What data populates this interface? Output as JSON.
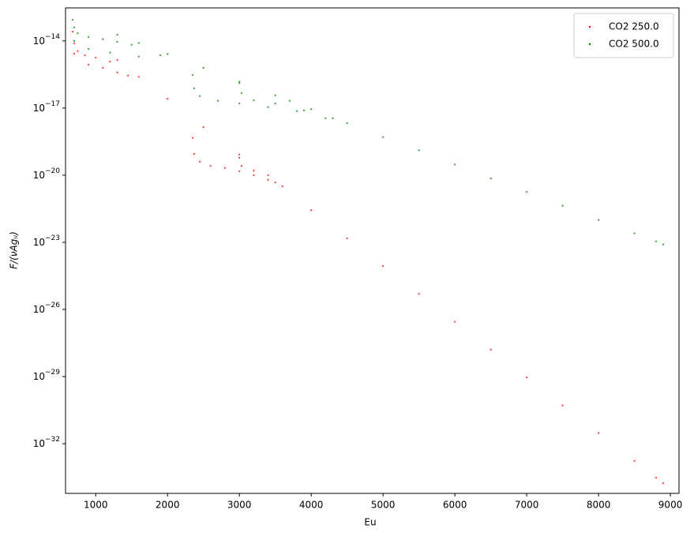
{
  "chart_data": {
    "type": "scatter",
    "xlabel": "Eu",
    "ylabel": "F/(νAgᵤ)",
    "xlim": [
      580,
      9120
    ],
    "ylim": [
      3e-13,
      6e-35
    ],
    "log_y": true,
    "xticks": [
      1000,
      2000,
      3000,
      4000,
      5000,
      6000,
      7000,
      8000,
      9000
    ],
    "yticks": [
      {
        "value": 1e-14,
        "label": "10^−14"
      },
      {
        "value": 1e-17,
        "label": "10^−17"
      },
      {
        "value": 1e-20,
        "label": "10^−20"
      },
      {
        "value": 1e-23,
        "label": "10^−23"
      },
      {
        "value": 1e-26,
        "label": "10^−26"
      },
      {
        "value": 1e-29,
        "label": "10^−29"
      },
      {
        "value": 1e-32,
        "label": "10^−32"
      }
    ],
    "legend": "upper right",
    "series": [
      {
        "name": "CO2 250.0",
        "color": "#ff0000",
        "x": [
          1300,
          1600,
          2000,
          2500,
          3000,
          3500,
          4000,
          4500,
          5000,
          5500,
          6000,
          6500,
          7000,
          7500,
          8000,
          8500,
          8800,
          8900,
          680,
          700,
          750,
          850,
          1000,
          1200,
          700,
          900,
          1100,
          1300,
          1450,
          2350,
          2370,
          2450,
          2600,
          2800,
          3000,
          3200,
          3400,
          3600,
          3000,
          3030,
          3200,
          3400
        ],
        "values": [
          1.4e-15,
          2.5e-16,
          2.6e-17,
          1.4e-18,
          8.3e-20,
          4.7e-21,
          2.7e-22,
          1.5e-23,
          8.7e-25,
          4.9e-26,
          2.8e-27,
          1.6e-28,
          9.1e-30,
          5.1e-31,
          3e-32,
          1.7e-33,
          3e-34,
          1.7e-34,
          2.6e-14,
          7.9e-15,
          3.5e-15,
          2.3e-15,
          1.8e-15,
          1.2e-15,
          2.7e-15,
          8.7e-16,
          6.3e-16,
          3.9e-16,
          2.8e-16,
          4.6e-19,
          8.9e-20,
          4e-20,
          2.6e-20,
          2.1e-20,
          1.5e-20,
          1e-20,
          6.2e-21,
          3.2e-21,
          6e-20,
          2.6e-20,
          1.6e-20,
          1e-20
        ]
      },
      {
        "name": "CO2 500.0",
        "color": "#008000",
        "x": [
          1300,
          1600,
          2000,
          2500,
          3000,
          3500,
          4000,
          4500,
          5000,
          5500,
          6000,
          6500,
          7000,
          7500,
          8000,
          8500,
          8800,
          8900,
          680,
          700,
          750,
          900,
          1100,
          1300,
          1500,
          700,
          900,
          1200,
          1600,
          1900,
          2350,
          2370,
          2450,
          2700,
          3000,
          3400,
          3800,
          4200,
          3000,
          3030,
          3200,
          3500,
          3700,
          3900,
          4300
        ],
        "values": [
          1.9e-14,
          8.1e-15,
          2.6e-15,
          6.3e-16,
          1.5e-16,
          3.7e-17,
          8.9e-18,
          2.1e-18,
          5.1e-19,
          1.3e-19,
          3e-20,
          7.2e-21,
          1.8e-21,
          4.3e-22,
          1e-22,
          2.5e-23,
          1.1e-23,
          8e-24,
          8.9e-14,
          4e-14,
          2.2e-14,
          1.5e-14,
          1.2e-14,
          9.2e-15,
          6.7e-15,
          1e-14,
          4.4e-15,
          3e-15,
          2e-15,
          2.3e-15,
          3e-16,
          7.6e-17,
          3.4e-17,
          2.1e-17,
          1.6e-17,
          1.1e-17,
          7.3e-18,
          3.5e-18,
          1.3e-16,
          4.7e-17,
          2.2e-17,
          1.6e-17,
          2.1e-17,
          7.9e-18,
          3.5e-18
        ]
      }
    ]
  }
}
